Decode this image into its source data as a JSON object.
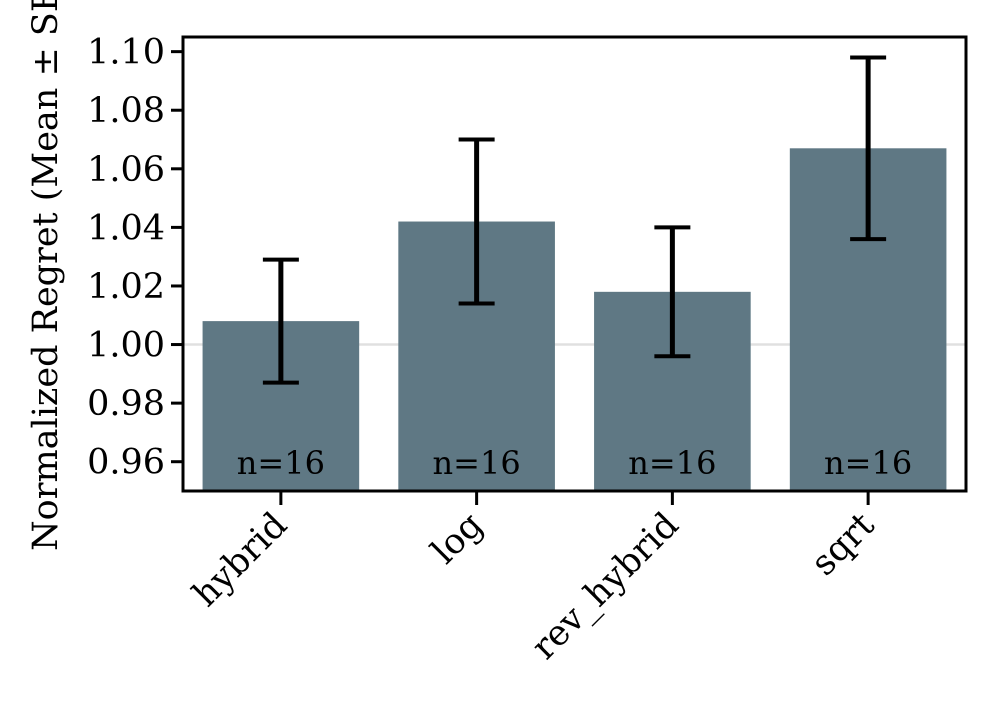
{
  "chart_data": {
    "type": "bar",
    "ylabel": "Normalized Regret (Mean ± SEM)",
    "ylim": [
      0.95,
      1.105
    ],
    "yticks": [
      0.96,
      0.98,
      1.0,
      1.02,
      1.04,
      1.06,
      1.08,
      1.1
    ],
    "ytick_labels": [
      "0.96",
      "0.98",
      "1.00",
      "1.02",
      "1.04",
      "1.06",
      "1.08",
      "1.10"
    ],
    "reference_line": 1.0,
    "categories": [
      "hybrid",
      "log",
      "rev_hybrid",
      "sqrt"
    ],
    "values": [
      1.008,
      1.042,
      1.018,
      1.067
    ],
    "error_low": [
      0.987,
      1.014,
      0.996,
      1.036
    ],
    "error_high": [
      1.029,
      1.07,
      1.04,
      1.098
    ],
    "bar_labels": [
      "n=16",
      "n=16",
      "n=16",
      "n=16"
    ],
    "bar_color": "#5f7884",
    "reference_line_color": "#e0e0e0"
  }
}
